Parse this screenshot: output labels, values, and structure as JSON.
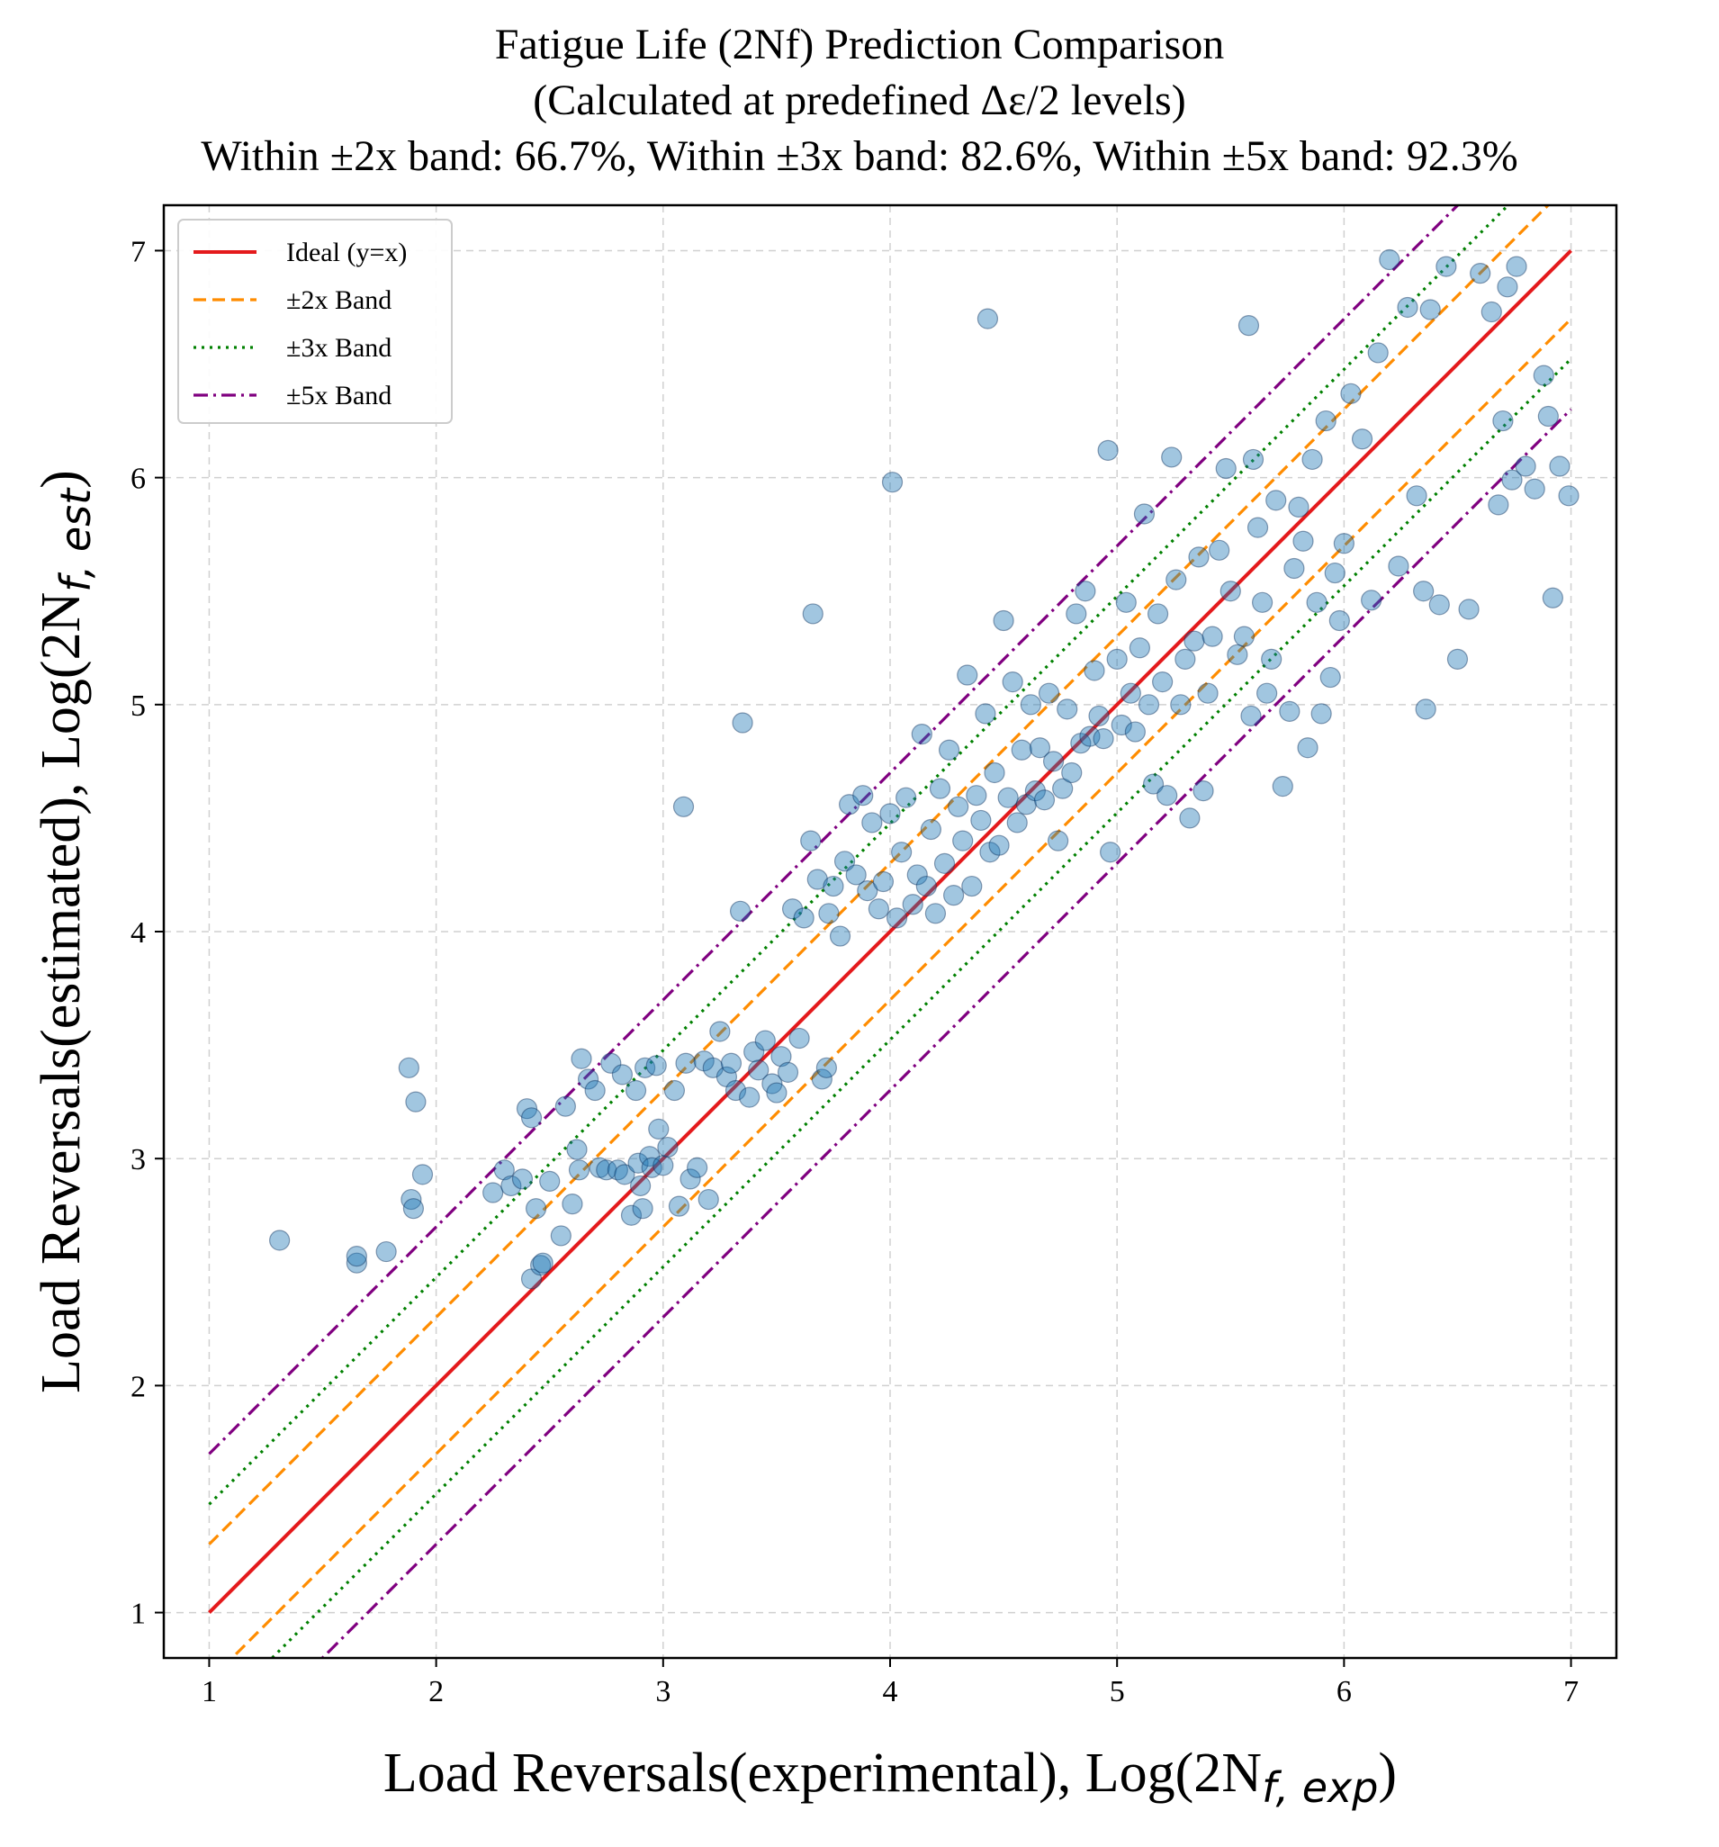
{
  "chart_data": {
    "type": "scatter",
    "title": "Fatigue Life (2Nf) Prediction Comparison",
    "subtitle": "(Calculated at predefined Δε/2 levels)",
    "stats_line": "Within ±2x band: 66.7%, Within ±3x band: 82.6%, Within ±5x band: 92.3%",
    "xlabel": "Load Reversals(experimental), Log(2N",
    "xlabel_sub": "f, exp",
    "xlabel_close": ")",
    "ylabel": "Load Reversals(estimated), Log(2N",
    "ylabel_sub": "f, est",
    "ylabel_close": ")",
    "xlim": [
      0.8,
      7.2
    ],
    "ylim": [
      0.8,
      7.2
    ],
    "xticks": [
      "1",
      "2",
      "3",
      "4",
      "5",
      "6",
      "7"
    ],
    "yticks": [
      "1",
      "2",
      "3",
      "4",
      "5",
      "6",
      "7"
    ],
    "grid": true,
    "legend_position": "top-left",
    "lines": [
      {
        "name": "Ideal (y=x)",
        "offset": 0.0,
        "color": "#e41a1c",
        "style": "solid"
      },
      {
        "name": "±2x Band",
        "offset": 0.301,
        "color": "#ff8c00",
        "style": "dashed"
      },
      {
        "name": "±3x Band",
        "offset": 0.477,
        "color": "#008000",
        "style": "dotted"
      },
      {
        "name": "±5x Band",
        "offset": 0.699,
        "color": "#800080",
        "style": "dashdot"
      }
    ],
    "points": [
      [
        1.31,
        2.64
      ],
      [
        1.65,
        2.54
      ],
      [
        1.65,
        2.57
      ],
      [
        1.78,
        2.59
      ],
      [
        1.88,
        3.4
      ],
      [
        1.89,
        2.82
      ],
      [
        1.9,
        2.78
      ],
      [
        1.91,
        3.25
      ],
      [
        1.94,
        2.93
      ],
      [
        2.25,
        2.85
      ],
      [
        2.3,
        2.95
      ],
      [
        2.33,
        2.88
      ],
      [
        2.38,
        2.91
      ],
      [
        2.4,
        3.22
      ],
      [
        2.42,
        3.18
      ],
      [
        2.42,
        2.47
      ],
      [
        2.44,
        2.78
      ],
      [
        2.46,
        2.53
      ],
      [
        2.47,
        2.54
      ],
      [
        2.5,
        2.9
      ],
      [
        2.55,
        2.66
      ],
      [
        2.57,
        3.23
      ],
      [
        2.6,
        2.8
      ],
      [
        2.62,
        3.04
      ],
      [
        2.63,
        2.95
      ],
      [
        2.64,
        3.44
      ],
      [
        2.67,
        3.35
      ],
      [
        2.7,
        3.3
      ],
      [
        2.72,
        2.96
      ],
      [
        2.75,
        2.95
      ],
      [
        2.77,
        3.42
      ],
      [
        2.8,
        2.95
      ],
      [
        2.82,
        3.37
      ],
      [
        2.83,
        2.93
      ],
      [
        2.86,
        2.75
      ],
      [
        2.88,
        3.3
      ],
      [
        2.89,
        2.98
      ],
      [
        2.9,
        2.88
      ],
      [
        2.91,
        2.78
      ],
      [
        2.92,
        3.4
      ],
      [
        2.94,
        3.01
      ],
      [
        2.95,
        2.96
      ],
      [
        2.97,
        3.41
      ],
      [
        2.98,
        3.13
      ],
      [
        3.0,
        2.97
      ],
      [
        3.02,
        3.05
      ],
      [
        3.05,
        3.3
      ],
      [
        3.07,
        2.79
      ],
      [
        3.09,
        4.55
      ],
      [
        3.1,
        3.42
      ],
      [
        3.12,
        2.91
      ],
      [
        3.15,
        2.96
      ],
      [
        3.18,
        3.43
      ],
      [
        3.2,
        2.82
      ],
      [
        3.22,
        3.4
      ],
      [
        3.25,
        3.56
      ],
      [
        3.28,
        3.36
      ],
      [
        3.3,
        3.42
      ],
      [
        3.32,
        3.3
      ],
      [
        3.34,
        4.09
      ],
      [
        3.35,
        4.92
      ],
      [
        3.38,
        3.27
      ],
      [
        3.4,
        3.47
      ],
      [
        3.42,
        3.39
      ],
      [
        3.45,
        3.52
      ],
      [
        3.48,
        3.33
      ],
      [
        3.5,
        3.29
      ],
      [
        3.52,
        3.45
      ],
      [
        3.55,
        3.38
      ],
      [
        3.57,
        4.1
      ],
      [
        3.6,
        3.53
      ],
      [
        3.62,
        4.06
      ],
      [
        3.65,
        4.4
      ],
      [
        3.66,
        5.4
      ],
      [
        3.68,
        4.23
      ],
      [
        3.7,
        3.35
      ],
      [
        3.72,
        3.4
      ],
      [
        3.73,
        4.08
      ],
      [
        3.75,
        4.2
      ],
      [
        3.78,
        3.98
      ],
      [
        3.8,
        4.31
      ],
      [
        3.82,
        4.56
      ],
      [
        3.85,
        4.25
      ],
      [
        3.88,
        4.6
      ],
      [
        3.9,
        4.18
      ],
      [
        3.92,
        4.48
      ],
      [
        3.95,
        4.1
      ],
      [
        3.97,
        4.22
      ],
      [
        4.0,
        4.52
      ],
      [
        4.01,
        5.98
      ],
      [
        4.03,
        4.06
      ],
      [
        4.05,
        4.35
      ],
      [
        4.07,
        4.59
      ],
      [
        4.1,
        4.12
      ],
      [
        4.12,
        4.25
      ],
      [
        4.14,
        4.87
      ],
      [
        4.16,
        4.2
      ],
      [
        4.18,
        4.45
      ],
      [
        4.2,
        4.08
      ],
      [
        4.22,
        4.63
      ],
      [
        4.24,
        4.3
      ],
      [
        4.26,
        4.8
      ],
      [
        4.28,
        4.16
      ],
      [
        4.3,
        4.55
      ],
      [
        4.32,
        4.4
      ],
      [
        4.34,
        5.13
      ],
      [
        4.36,
        4.2
      ],
      [
        4.38,
        4.6
      ],
      [
        4.4,
        4.49
      ],
      [
        4.42,
        4.96
      ],
      [
        4.43,
        6.7
      ],
      [
        4.44,
        4.35
      ],
      [
        4.46,
        4.7
      ],
      [
        4.48,
        4.38
      ],
      [
        4.5,
        5.37
      ],
      [
        4.52,
        4.59
      ],
      [
        4.54,
        5.1
      ],
      [
        4.56,
        4.48
      ],
      [
        4.58,
        4.8
      ],
      [
        4.6,
        4.56
      ],
      [
        4.62,
        5.0
      ],
      [
        4.64,
        4.62
      ],
      [
        4.66,
        4.81
      ],
      [
        4.68,
        4.58
      ],
      [
        4.7,
        5.05
      ],
      [
        4.72,
        4.75
      ],
      [
        4.74,
        4.4
      ],
      [
        4.76,
        4.63
      ],
      [
        4.78,
        4.98
      ],
      [
        4.8,
        4.7
      ],
      [
        4.82,
        5.4
      ],
      [
        4.84,
        4.83
      ],
      [
        4.86,
        5.5
      ],
      [
        4.88,
        4.86
      ],
      [
        4.9,
        5.15
      ],
      [
        4.92,
        4.95
      ],
      [
        4.94,
        4.85
      ],
      [
        4.96,
        6.12
      ],
      [
        4.97,
        4.35
      ],
      [
        5.0,
        5.2
      ],
      [
        5.02,
        4.91
      ],
      [
        5.04,
        5.45
      ],
      [
        5.06,
        5.05
      ],
      [
        5.08,
        4.88
      ],
      [
        5.1,
        5.25
      ],
      [
        5.12,
        5.84
      ],
      [
        5.14,
        5.0
      ],
      [
        5.16,
        4.65
      ],
      [
        5.18,
        5.4
      ],
      [
        5.2,
        5.1
      ],
      [
        5.22,
        4.6
      ],
      [
        5.24,
        6.09
      ],
      [
        5.26,
        5.55
      ],
      [
        5.28,
        5.0
      ],
      [
        5.3,
        5.2
      ],
      [
        5.32,
        4.5
      ],
      [
        5.34,
        5.28
      ],
      [
        5.36,
        5.65
      ],
      [
        5.38,
        4.62
      ],
      [
        5.4,
        5.05
      ],
      [
        5.42,
        5.3
      ],
      [
        5.45,
        5.68
      ],
      [
        5.48,
        6.04
      ],
      [
        5.5,
        5.5
      ],
      [
        5.53,
        5.22
      ],
      [
        5.56,
        5.3
      ],
      [
        5.58,
        6.67
      ],
      [
        5.59,
        4.95
      ],
      [
        5.6,
        6.08
      ],
      [
        5.62,
        5.78
      ],
      [
        5.64,
        5.45
      ],
      [
        5.66,
        5.05
      ],
      [
        5.68,
        5.2
      ],
      [
        5.7,
        5.9
      ],
      [
        5.73,
        4.64
      ],
      [
        5.76,
        4.97
      ],
      [
        5.78,
        5.6
      ],
      [
        5.8,
        5.87
      ],
      [
        5.82,
        5.72
      ],
      [
        5.84,
        4.81
      ],
      [
        5.86,
        6.08
      ],
      [
        5.88,
        5.45
      ],
      [
        5.9,
        4.96
      ],
      [
        5.92,
        6.25
      ],
      [
        5.94,
        5.12
      ],
      [
        5.96,
        5.58
      ],
      [
        5.98,
        5.37
      ],
      [
        6.0,
        5.71
      ],
      [
        6.03,
        6.37
      ],
      [
        6.08,
        6.17
      ],
      [
        6.12,
        5.46
      ],
      [
        6.15,
        6.55
      ],
      [
        6.2,
        6.96
      ],
      [
        6.24,
        5.61
      ],
      [
        6.28,
        6.75
      ],
      [
        6.32,
        5.92
      ],
      [
        6.35,
        5.5
      ],
      [
        6.36,
        4.98
      ],
      [
        6.38,
        6.74
      ],
      [
        6.42,
        5.44
      ],
      [
        6.45,
        6.93
      ],
      [
        6.5,
        5.2
      ],
      [
        6.55,
        5.42
      ],
      [
        6.6,
        6.9
      ],
      [
        6.65,
        6.73
      ],
      [
        6.68,
        5.88
      ],
      [
        6.7,
        6.25
      ],
      [
        6.72,
        6.84
      ],
      [
        6.74,
        5.99
      ],
      [
        6.76,
        6.93
      ],
      [
        6.8,
        6.05
      ],
      [
        6.84,
        5.95
      ],
      [
        6.88,
        6.45
      ],
      [
        6.9,
        6.27
      ],
      [
        6.92,
        5.47
      ],
      [
        6.95,
        6.05
      ],
      [
        6.99,
        5.92
      ]
    ]
  }
}
